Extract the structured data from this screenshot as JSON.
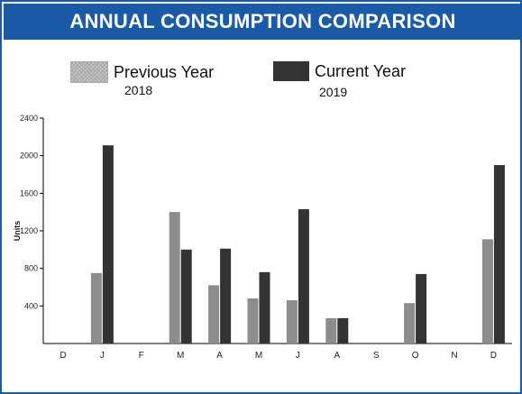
{
  "header": {
    "title": "ANNUAL CONSUMPTION COMPARISON"
  },
  "legend": {
    "previous": {
      "label": "Previous Year",
      "year": "2018"
    },
    "current": {
      "label": "Current Year",
      "year": "2019"
    }
  },
  "chart_data": {
    "type": "bar",
    "title": "ANNUAL CONSUMPTION COMPARISON",
    "xlabel": "",
    "ylabel": "Units",
    "ylim": [
      0,
      2400
    ],
    "yticks": [
      400,
      800,
      1200,
      1600,
      2000,
      2400
    ],
    "categories": [
      "D",
      "J",
      "F",
      "M",
      "A",
      "M",
      "J",
      "A",
      "S",
      "O",
      "N",
      "D"
    ],
    "series": [
      {
        "name": "Previous Year",
        "color": "#8c8c8c",
        "values": [
          0,
          750,
          0,
          1400,
          620,
          480,
          460,
          270,
          0,
          430,
          0,
          1110
        ]
      },
      {
        "name": "Current Year",
        "color": "#333333",
        "values": [
          0,
          2110,
          0,
          1000,
          1010,
          760,
          1430,
          270,
          0,
          740,
          0,
          1900
        ]
      }
    ],
    "grid": false,
    "legend_position": "top"
  }
}
